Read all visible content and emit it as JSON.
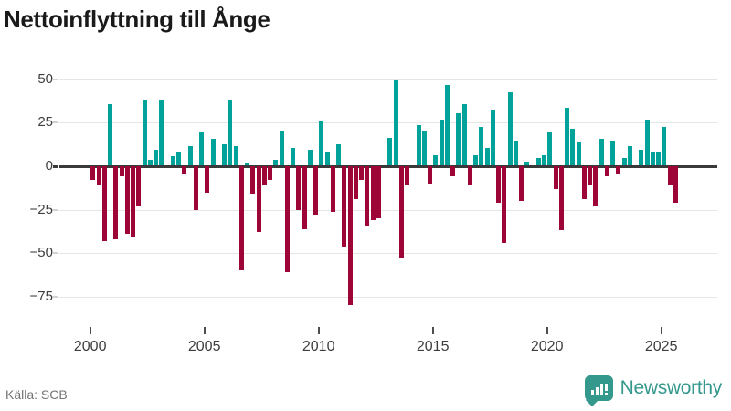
{
  "header": {
    "title": "Nettoinflyttning till Ånge"
  },
  "footer": {
    "source": "Källa: SCB",
    "brand_label": "Newsworthy",
    "brand_icon": "bar-chart-speech-bubble-icon",
    "brand_color": "#35988C"
  },
  "chart_data": {
    "type": "bar",
    "title": "Nettoinflyttning till Ånge",
    "subtitle": "",
    "frequency": "quarterly",
    "period_start": "2000 Q1",
    "period_end": "2025 Q3",
    "xlabel": "",
    "ylabel": "",
    "ylim": [
      -85,
      57
    ],
    "grid": true,
    "x_ticks": [
      2000,
      2005,
      2010,
      2015,
      2020,
      2025
    ],
    "y_ticks": [
      50,
      25,
      0,
      -25,
      -50,
      -75
    ],
    "y_tick_labels": [
      "50",
      "25",
      "0",
      "−25",
      "−50",
      "−75"
    ],
    "positive_color": "#00A29A",
    "negative_color": "#9C0536",
    "source": "Källa: SCB",
    "values": [
      -8,
      -11,
      -43,
      35,
      -42,
      -6,
      -39,
      -41,
      -23,
      38,
      3,
      9,
      38,
      0,
      5,
      8,
      -4,
      11,
      -25,
      19,
      -15,
      15,
      0,
      12,
      38,
      11,
      -60,
      1,
      -16,
      -38,
      -11,
      -8,
      3,
      20,
      -61,
      10,
      -25,
      -36,
      9,
      -28,
      25,
      8,
      -26,
      12,
      -46,
      -80,
      -19,
      -8,
      -34,
      -31,
      -30,
      0,
      16,
      49,
      -53,
      -11,
      0,
      23,
      20,
      -10,
      6,
      26,
      46,
      -6,
      30,
      35,
      -11,
      6,
      22,
      10,
      32,
      -21,
      -44,
      42,
      14,
      -20,
      2,
      0,
      4,
      6,
      19,
      -13,
      -37,
      33,
      21,
      13,
      -19,
      -11,
      -23,
      15,
      -6,
      14,
      -4,
      4,
      11,
      0,
      9,
      26,
      8,
      8,
      22,
      -11,
      -21
    ]
  }
}
